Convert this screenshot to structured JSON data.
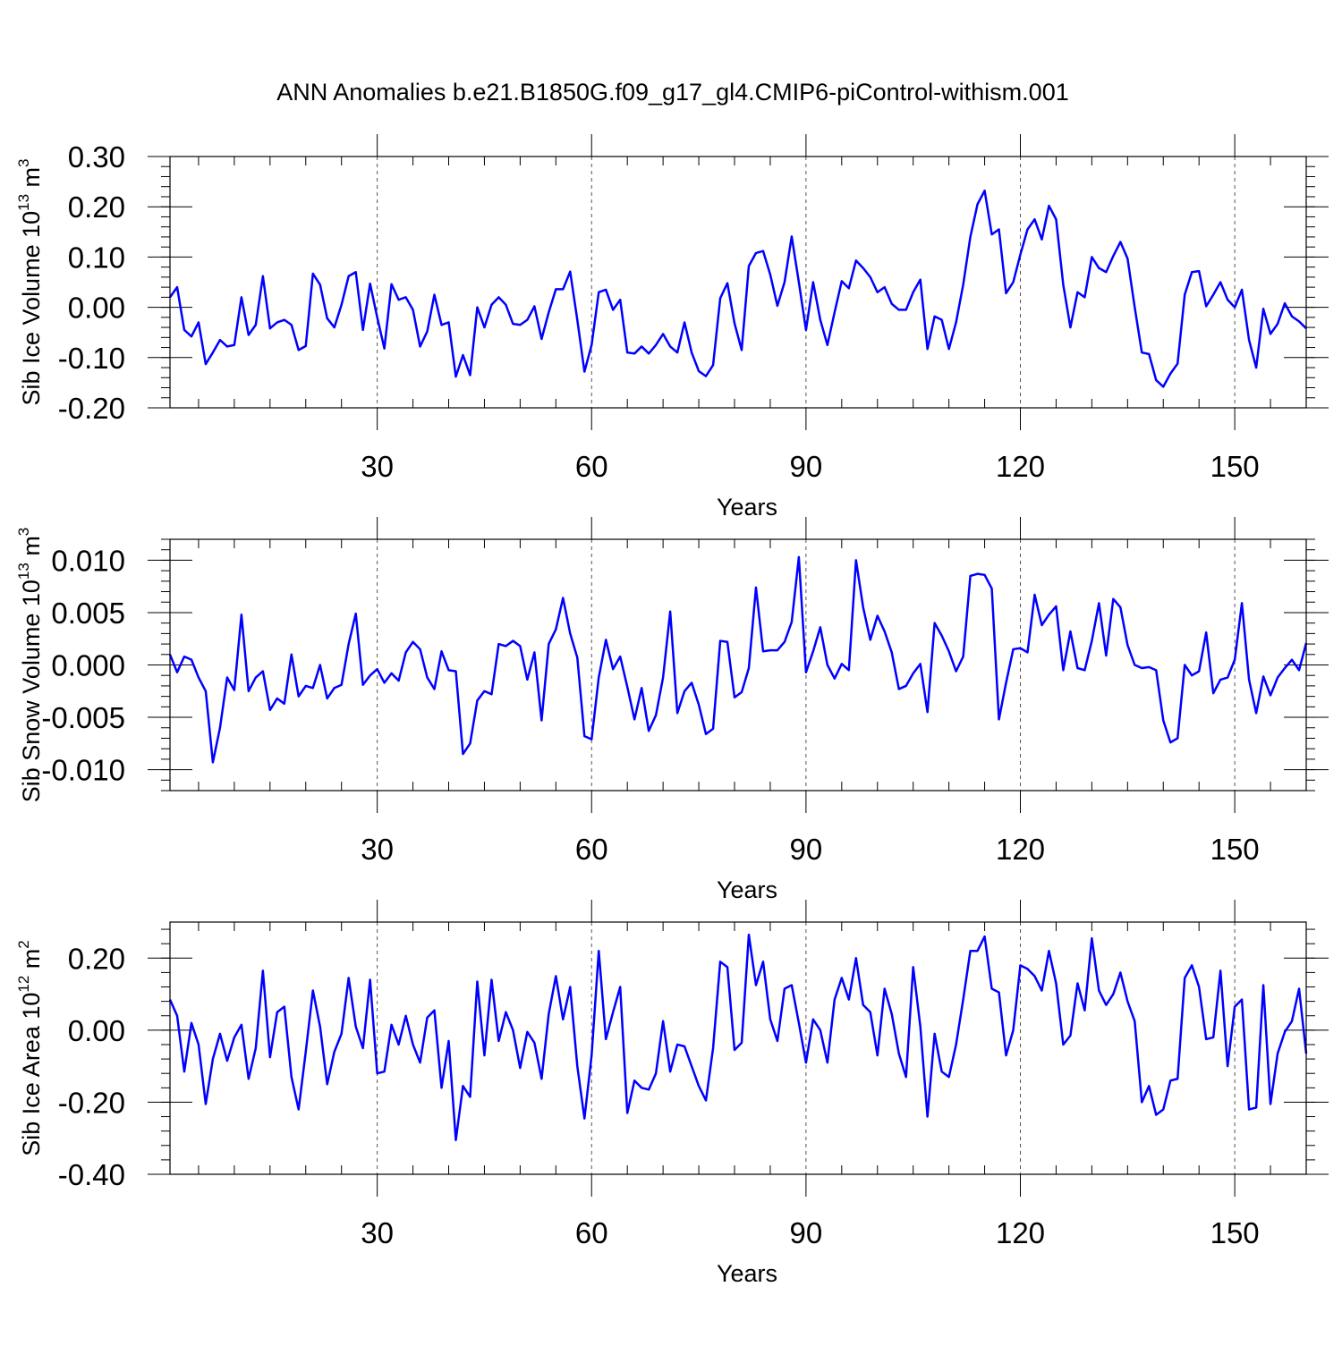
{
  "title": "ANN Anomalies b.e21.B1850G.f09_g17_gl4.CMIP6-piControl-withism.001",
  "line_color": "#0000ff",
  "chart_data": [
    {
      "type": "line",
      "ylabel": "Sib Ice Volume 10",
      "ylabel_exp": "13",
      "ylabel_unit": " m",
      "ylabel_unit_exp": "3",
      "xlabel": "Years",
      "xlim": [
        1,
        160
      ],
      "ylim": [
        -0.2,
        0.3
      ],
      "yticks": [
        -0.2,
        -0.1,
        0.0,
        0.1,
        0.2,
        0.3
      ],
      "ytick_labels": [
        "-0.20",
        "-0.10",
        "0.00",
        "0.10",
        "0.20",
        "0.30"
      ],
      "xticks": [
        30,
        60,
        90,
        120,
        150
      ],
      "xtick_labels": [
        "30",
        "60",
        "90",
        "120",
        "150"
      ],
      "grid": "vertical dashed at major x ticks",
      "series": [
        {
          "values": [
            0.02,
            0.04,
            -0.045,
            -0.058,
            -0.03,
            -0.113,
            -0.09,
            -0.065,
            -0.078,
            -0.075,
            0.02,
            -0.055,
            -0.035,
            0.062,
            -0.042,
            -0.03,
            -0.025,
            -0.035,
            -0.085,
            -0.077,
            0.067,
            0.045,
            -0.022,
            -0.04,
            0.005,
            0.062,
            0.07,
            -0.045,
            0.047,
            -0.02,
            -0.082,
            0.046,
            0.015,
            0.02,
            -0.005,
            -0.078,
            -0.048,
            0.025,
            -0.035,
            -0.03,
            -0.138,
            -0.095,
            -0.135,
            0.0,
            -0.04,
            0.005,
            0.02,
            0.005,
            -0.033,
            -0.035,
            -0.025,
            0.002,
            -0.063,
            -0.01,
            0.036,
            0.036,
            0.071,
            -0.025,
            -0.128,
            -0.075,
            0.03,
            0.035,
            -0.005,
            0.015,
            -0.09,
            -0.092,
            -0.078,
            -0.092,
            -0.075,
            -0.053,
            -0.078,
            -0.09,
            -0.03,
            -0.09,
            -0.127,
            -0.137,
            -0.115,
            0.018,
            0.048,
            -0.032,
            -0.085,
            0.082,
            0.108,
            0.112,
            0.065,
            0.003,
            0.05,
            0.141,
            0.05,
            -0.045,
            0.05,
            -0.025,
            -0.075,
            -0.01,
            0.052,
            0.038,
            0.093,
            0.078,
            0.06,
            0.03,
            0.04,
            0.007,
            -0.005,
            -0.005,
            0.03,
            0.055,
            -0.083,
            -0.018,
            -0.025,
            -0.083,
            -0.03,
            0.045,
            0.14,
            0.205,
            0.232,
            0.145,
            0.155,
            0.028,
            0.05,
            0.105,
            0.155,
            0.175,
            0.135,
            0.202,
            0.175,
            0.045,
            -0.04,
            0.03,
            0.02,
            0.1,
            0.078,
            0.07,
            0.102,
            0.13,
            0.097,
            0.0,
            -0.09,
            -0.093,
            -0.145,
            -0.158,
            -0.132,
            -0.112,
            0.025,
            0.07,
            0.072,
            0.002,
            0.025,
            0.05,
            0.015,
            0.0,
            0.035,
            -0.065,
            -0.12,
            -0.003,
            -0.053,
            -0.033,
            0.008,
            -0.018,
            -0.028,
            -0.042
          ]
        }
      ]
    },
    {
      "type": "line",
      "ylabel": "Sib Snow Volume 10",
      "ylabel_exp": "13",
      "ylabel_unit": " m",
      "ylabel_unit_exp": "3",
      "xlabel": "Years",
      "xlim": [
        1,
        160
      ],
      "ylim": [
        -0.012,
        0.012
      ],
      "yticks": [
        -0.01,
        -0.005,
        0.0,
        0.005,
        0.01
      ],
      "ytick_labels": [
        "-0.010",
        "-0.005",
        "0.000",
        "0.005",
        "0.010"
      ],
      "xticks": [
        30,
        60,
        90,
        120,
        150
      ],
      "xtick_labels": [
        "30",
        "60",
        "90",
        "120",
        "150"
      ],
      "grid": "vertical dashed at major x ticks",
      "series": [
        {
          "values": [
            0.001,
            -0.0007,
            0.0008,
            0.0005,
            -0.0012,
            -0.0025,
            -0.0093,
            -0.006,
            -0.0012,
            -0.0024,
            0.0048,
            -0.0025,
            -0.0012,
            -0.0006,
            -0.0043,
            -0.0032,
            -0.0037,
            0.001,
            -0.003,
            -0.002,
            -0.0022,
            0.0,
            -0.0032,
            -0.0022,
            -0.0019,
            0.002,
            0.0049,
            -0.0019,
            -0.001,
            -0.0004,
            -0.0017,
            -0.0008,
            -0.0015,
            0.0012,
            0.0022,
            0.0015,
            -0.0012,
            -0.0023,
            0.0013,
            -0.0005,
            -0.0006,
            -0.0085,
            -0.0075,
            -0.0034,
            -0.0025,
            -0.0028,
            0.002,
            0.0018,
            0.0023,
            0.0018,
            -0.0014,
            0.0012,
            -0.0053,
            0.002,
            0.0034,
            0.0064,
            0.003,
            0.0007,
            -0.0068,
            -0.0071,
            -0.0012,
            0.0024,
            -0.0004,
            0.0008,
            -0.0021,
            -0.0052,
            -0.0022,
            -0.0063,
            -0.0048,
            -0.0012,
            0.0051,
            -0.0046,
            -0.0025,
            -0.0017,
            -0.0038,
            -0.0066,
            -0.0061,
            0.0023,
            0.0022,
            -0.0031,
            -0.0026,
            -0.0003,
            0.0074,
            0.0013,
            0.0014,
            0.0014,
            0.0022,
            0.0041,
            0.0103,
            -0.0007,
            0.0013,
            0.0036,
            0.0,
            -0.0013,
            0.0001,
            -0.0005,
            0.01,
            0.0055,
            0.0024,
            0.0047,
            0.0032,
            0.0012,
            -0.0023,
            -0.002,
            -0.0008,
            0.0001,
            -0.0045,
            0.004,
            0.0028,
            0.0013,
            -0.0006,
            0.0008,
            0.0085,
            0.0087,
            0.0086,
            0.0073,
            -0.0052,
            -0.0017,
            0.0015,
            0.0016,
            0.0012,
            0.0067,
            0.0038,
            0.0048,
            0.0056,
            -0.0005,
            0.0032,
            -0.0003,
            -0.0005,
            0.0023,
            0.0059,
            0.0009,
            0.0063,
            0.0055,
            0.0019,
            0.0,
            -0.0003,
            -0.0002,
            -0.0005,
            -0.0053,
            -0.0074,
            -0.007,
            0.0,
            -0.001,
            -0.0006,
            0.0031,
            -0.0027,
            -0.0014,
            -0.0012,
            0.0005,
            0.0059,
            -0.0014,
            -0.0046,
            -0.0011,
            -0.0029,
            -0.0012,
            -0.0003,
            0.0005,
            -0.0005,
            0.0021
          ]
        }
      ]
    },
    {
      "type": "line",
      "ylabel": "Sib Ice Area 10",
      "ylabel_exp": "12",
      "ylabel_unit": " m",
      "ylabel_unit_exp": "2",
      "xlabel": "Years",
      "xlim": [
        1,
        160
      ],
      "ylim": [
        -0.4,
        0.3
      ],
      "yticks": [
        -0.4,
        -0.2,
        0.0,
        0.2
      ],
      "ytick_labels": [
        "-0.40",
        "-0.20",
        "0.00",
        "0.20"
      ],
      "xticks": [
        30,
        60,
        90,
        120,
        150
      ],
      "xtick_labels": [
        "30",
        "60",
        "90",
        "120",
        "150"
      ],
      "grid": "vertical dashed at major x ticks",
      "series": [
        {
          "values": [
            0.085,
            0.04,
            -0.115,
            0.02,
            -0.04,
            -0.205,
            -0.08,
            -0.01,
            -0.085,
            -0.02,
            0.015,
            -0.135,
            -0.05,
            0.165,
            -0.075,
            0.05,
            0.065,
            -0.13,
            -0.22,
            -0.06,
            0.11,
            0.01,
            -0.15,
            -0.06,
            -0.01,
            0.145,
            0.01,
            -0.05,
            0.14,
            -0.12,
            -0.115,
            0.015,
            -0.04,
            0.04,
            -0.04,
            -0.09,
            0.035,
            0.055,
            -0.16,
            -0.03,
            -0.305,
            -0.155,
            -0.185,
            0.135,
            -0.07,
            0.14,
            -0.03,
            0.05,
            0.0,
            -0.105,
            -0.005,
            -0.035,
            -0.135,
            0.045,
            0.15,
            0.03,
            0.12,
            -0.1,
            -0.245,
            -0.07,
            0.22,
            -0.025,
            0.05,
            0.12,
            -0.23,
            -0.14,
            -0.16,
            -0.165,
            -0.12,
            0.025,
            -0.115,
            -0.04,
            -0.045,
            -0.1,
            -0.155,
            -0.195,
            -0.05,
            0.19,
            0.175,
            -0.055,
            -0.035,
            0.265,
            0.125,
            0.19,
            0.03,
            -0.03,
            0.115,
            0.125,
            0.02,
            -0.09,
            0.03,
            0.0,
            -0.09,
            0.085,
            0.145,
            0.085,
            0.2,
            0.07,
            0.05,
            -0.07,
            0.115,
            0.045,
            -0.065,
            -0.13,
            0.175,
            0.01,
            -0.24,
            -0.01,
            -0.115,
            -0.13,
            -0.04,
            0.085,
            0.22,
            0.22,
            0.26,
            0.115,
            0.105,
            -0.07,
            0.0,
            0.18,
            0.17,
            0.15,
            0.11,
            0.22,
            0.13,
            -0.04,
            -0.015,
            0.13,
            0.055,
            0.255,
            0.11,
            0.07,
            0.1,
            0.16,
            0.08,
            0.025,
            -0.2,
            -0.155,
            -0.235,
            -0.22,
            -0.14,
            -0.135,
            0.145,
            0.18,
            0.12,
            -0.025,
            -0.02,
            0.165,
            -0.1,
            0.065,
            0.085,
            -0.22,
            -0.215,
            0.125,
            -0.205,
            -0.065,
            -0.005,
            0.025,
            0.115,
            -0.065
          ]
        }
      ]
    }
  ]
}
